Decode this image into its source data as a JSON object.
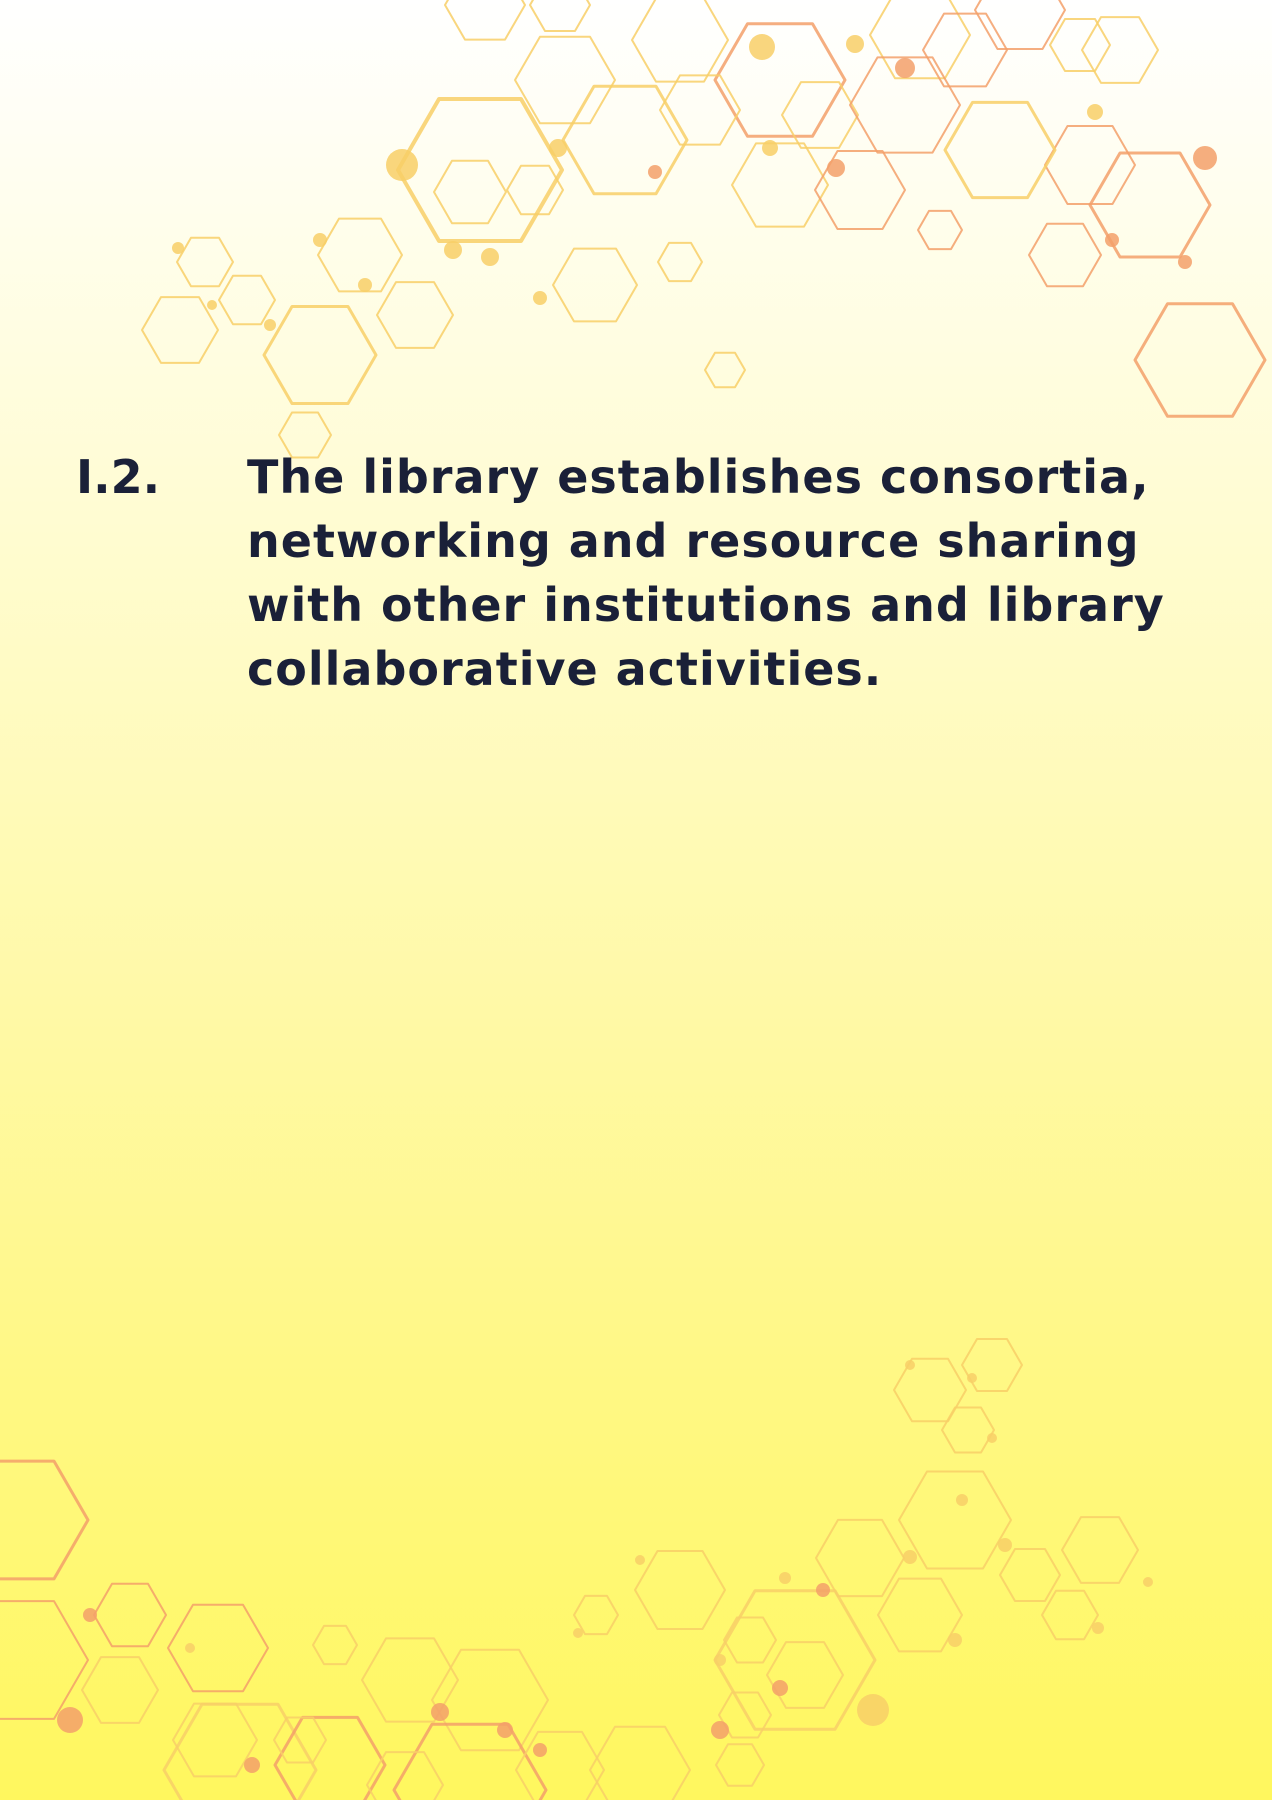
{
  "statement": {
    "number": "I.2.",
    "text": "The library establishes consortia, networking and resource sharing with other institutions and library collaborative activities."
  },
  "colors": {
    "text": "#1a2038",
    "hex_light": "#f8cf67",
    "hex_orange": "#f3a06a",
    "background_top": "#ffffff",
    "background_bottom": "#fff75e"
  }
}
